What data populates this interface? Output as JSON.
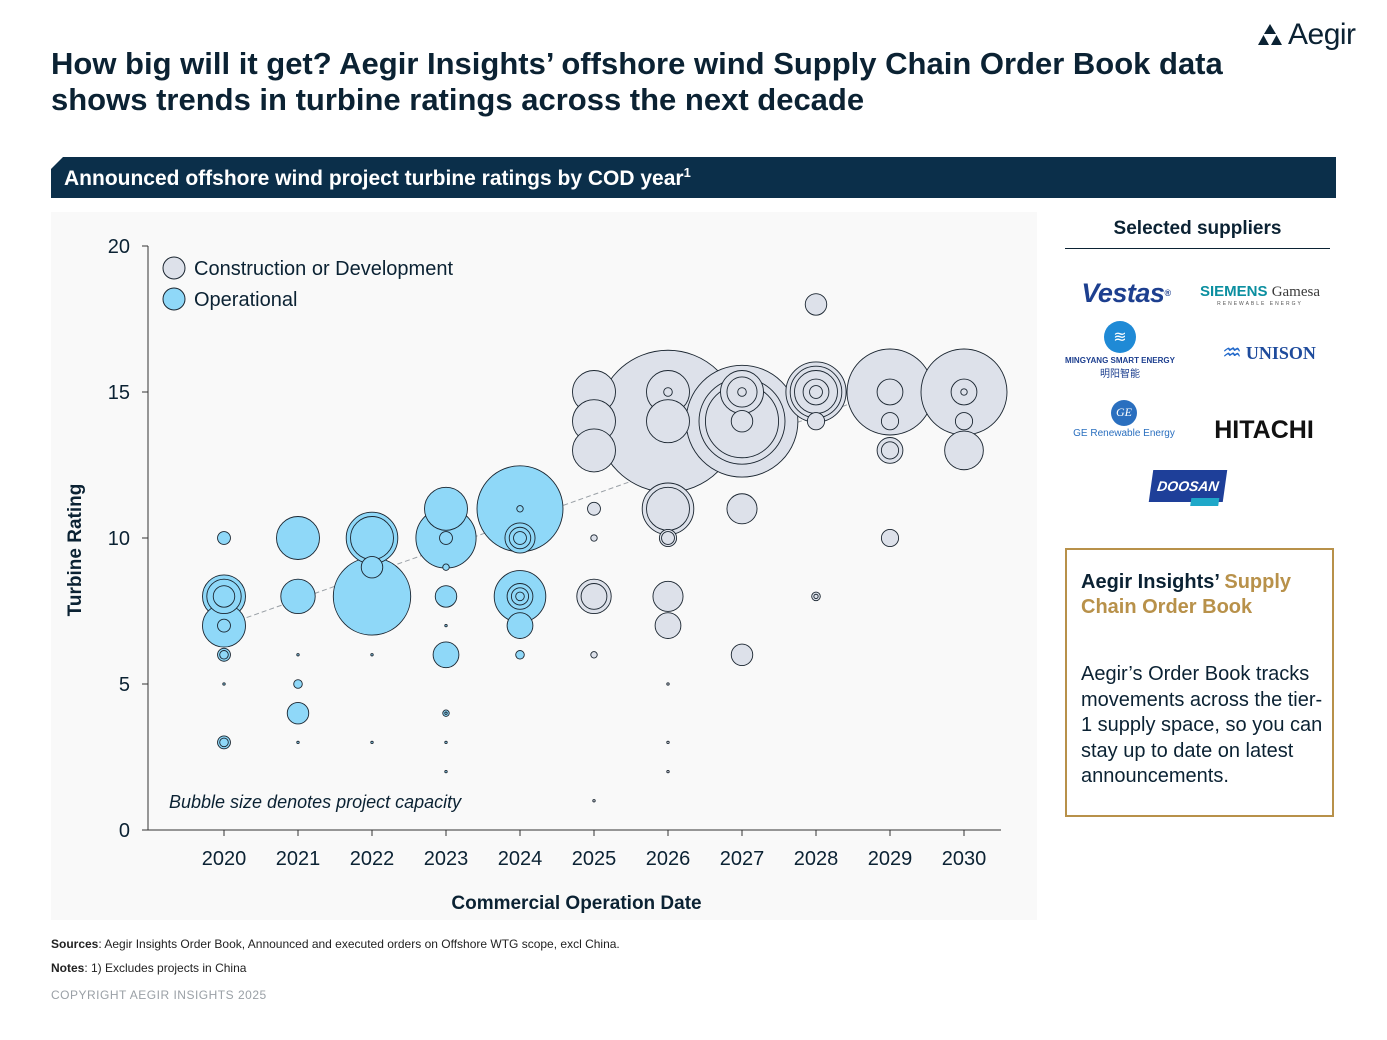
{
  "brand": {
    "name": "Aegir"
  },
  "title": "How big will it get? Aegir Insights’ offshore wind Supply Chain Order Book data shows trends in turbine ratings across the next decade",
  "banner": {
    "text": "Announced offshore wind project turbine ratings by COD year",
    "footnote": "1"
  },
  "colors": {
    "navy": "#0b2f4a",
    "operational": "#8fd8f8",
    "construction": "#dde1ea",
    "gold": "#b8914a"
  },
  "suppliers": {
    "title": "Selected suppliers",
    "vestas": "Vestas",
    "vestas_mark": "®",
    "siemens_a": "SIEMENS",
    "siemens_b": "Gamesa",
    "siemens_sub": "RENEWABLE ENERGY",
    "mingyang_a": "MINGYANG SMART ENERGY",
    "mingyang_b": "明阳智能",
    "unison": "UNISON",
    "ge_mark": "GE",
    "ge": "GE Renewable Energy",
    "hitachi": "HITACHI",
    "doosan": "DOOSAN"
  },
  "callout": {
    "title_a": "Aegir Insights’",
    "title_b": "Supply Chain Order Book",
    "body": "Aegir’s Order Book tracks movements across the tier-1 supply space, so you can stay up to date on latest announcements."
  },
  "sources": {
    "label": "Sources",
    "text": ": Aegir Insights Order Book, Announced and executed orders on Offshore WTG scope, excl China."
  },
  "notes": {
    "label": "Notes",
    "text": ": 1) Excludes projects in China"
  },
  "copyright": "COPYRIGHT AEGIR INSIGHTS 2025",
  "chart_data": {
    "type": "scatter",
    "subtype": "bubble",
    "title": "Announced offshore wind project turbine ratings by COD year",
    "xlabel": "Commercial Operation Date",
    "ylabel": "Turbine Rating",
    "ylim": [
      0,
      20
    ],
    "yticks": [
      0,
      5,
      10,
      15,
      20
    ],
    "x_categories": [
      "2020",
      "2021",
      "2022",
      "2023",
      "2024",
      "2025",
      "2026",
      "2027",
      "2028",
      "2029",
      "2030"
    ],
    "legend": [
      "Construction or Development",
      "Operational"
    ],
    "legend_position": "top-left",
    "annotation": "Bubble size denotes project capacity",
    "trendline": {
      "from": [
        "2020",
        7
      ],
      "to": [
        "2030",
        16
      ]
    },
    "series": [
      {
        "name": "Operational",
        "points": [
          [
            "2020",
            10,
            3
          ],
          [
            "2020",
            8,
            10
          ],
          [
            "2020",
            8,
            8
          ],
          [
            "2020",
            8,
            5
          ],
          [
            "2020",
            7,
            10
          ],
          [
            "2020",
            7,
            3
          ],
          [
            "2020",
            6,
            3
          ],
          [
            "2020",
            6,
            2
          ],
          [
            "2020",
            5,
            0.5
          ],
          [
            "2020",
            3,
            3
          ],
          [
            "2020",
            3,
            2
          ],
          [
            "2021",
            10,
            10
          ],
          [
            "2021",
            8,
            8
          ],
          [
            "2021",
            6,
            0.5
          ],
          [
            "2021",
            5,
            2
          ],
          [
            "2021",
            4,
            5
          ],
          [
            "2021",
            3,
            0.5
          ],
          [
            "2022",
            10,
            12
          ],
          [
            "2022",
            10,
            10
          ],
          [
            "2022",
            9,
            5
          ],
          [
            "2022",
            8,
            18
          ],
          [
            "2022",
            6,
            0.5
          ],
          [
            "2022",
            3,
            0.5
          ],
          [
            "2023",
            11,
            10
          ],
          [
            "2023",
            10,
            14
          ],
          [
            "2023",
            10,
            3
          ],
          [
            "2023",
            9,
            1.5
          ],
          [
            "2023",
            8,
            5
          ],
          [
            "2023",
            7,
            0.5
          ],
          [
            "2023",
            6,
            6
          ],
          [
            "2023",
            4,
            1.5
          ],
          [
            "2023",
            4,
            0.5
          ],
          [
            "2023",
            3,
            0.5
          ],
          [
            "2023",
            2,
            0.5
          ],
          [
            "2024",
            11,
            20
          ],
          [
            "2024",
            11,
            1.5
          ],
          [
            "2024",
            10,
            7
          ],
          [
            "2024",
            10,
            5
          ],
          [
            "2024",
            10,
            3
          ],
          [
            "2024",
            8,
            12
          ],
          [
            "2024",
            8,
            6
          ],
          [
            "2024",
            8,
            4
          ],
          [
            "2024",
            8,
            2
          ],
          [
            "2024",
            7,
            6
          ],
          [
            "2024",
            6,
            2
          ]
        ]
      },
      {
        "name": "Construction or Development",
        "points": [
          [
            "2025",
            15,
            10
          ],
          [
            "2025",
            14,
            10
          ],
          [
            "2025",
            13,
            10
          ],
          [
            "2025",
            11,
            3
          ],
          [
            "2025",
            10,
            1.5
          ],
          [
            "2025",
            8,
            8
          ],
          [
            "2025",
            8,
            6
          ],
          [
            "2025",
            6,
            1.5
          ],
          [
            "2025",
            1,
            0.5
          ],
          [
            "2026",
            14,
            33
          ],
          [
            "2026",
            15,
            10
          ],
          [
            "2026",
            14,
            10
          ],
          [
            "2026",
            15,
            2
          ],
          [
            "2026",
            11,
            12
          ],
          [
            "2026",
            11,
            10
          ],
          [
            "2026",
            10,
            4
          ],
          [
            "2026",
            10,
            3
          ],
          [
            "2026",
            8,
            7
          ],
          [
            "2026",
            7,
            6
          ],
          [
            "2026",
            5,
            0.5
          ],
          [
            "2026",
            3,
            0.5
          ],
          [
            "2026",
            2,
            0.5
          ],
          [
            "2027",
            14,
            26
          ],
          [
            "2027",
            14,
            20
          ],
          [
            "2027",
            14,
            17
          ],
          [
            "2027",
            15,
            10
          ],
          [
            "2027",
            15,
            7
          ],
          [
            "2027",
            14,
            5
          ],
          [
            "2027",
            15,
            2
          ],
          [
            "2027",
            11,
            7
          ],
          [
            "2027",
            6,
            5
          ],
          [
            "2028",
            18,
            5
          ],
          [
            "2028",
            15,
            14
          ],
          [
            "2028",
            15,
            12
          ],
          [
            "2028",
            15,
            10
          ],
          [
            "2028",
            15,
            6
          ],
          [
            "2028",
            15,
            3
          ],
          [
            "2028",
            14,
            4
          ],
          [
            "2028",
            8,
            2
          ],
          [
            "2028",
            8,
            1
          ],
          [
            "2029",
            15,
            20
          ],
          [
            "2029",
            15,
            6
          ],
          [
            "2029",
            14,
            4
          ],
          [
            "2029",
            13,
            6
          ],
          [
            "2029",
            13,
            4
          ],
          [
            "2029",
            10,
            4
          ],
          [
            "2030",
            15,
            20
          ],
          [
            "2030",
            15,
            6
          ],
          [
            "2030",
            15,
            1.5
          ],
          [
            "2030",
            14,
            4
          ],
          [
            "2030",
            13,
            9
          ]
        ]
      }
    ]
  }
}
